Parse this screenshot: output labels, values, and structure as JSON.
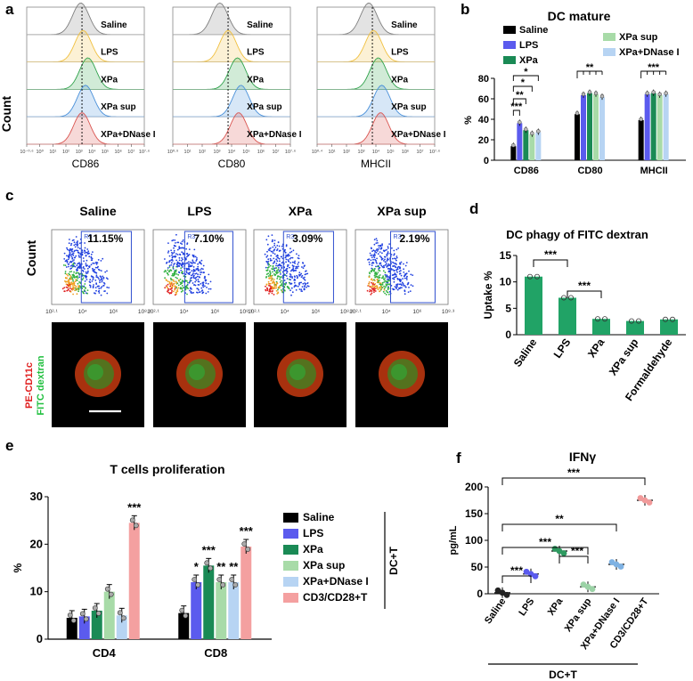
{
  "colors": {
    "saline": "#000000",
    "lps": "#5b5bee",
    "xpa": "#1a8a55",
    "xpa_sup": "#a8dba8",
    "xpa_dnase": "#b7d4f3",
    "cd3cd28": "#f4a0a0",
    "phagy_bar": "#21a366",
    "ifn_saline": "#222222",
    "ifn_lps": "#5b5bee",
    "ifn_xpa": "#2e9a60",
    "ifn_xpasup": "#9bd2a6",
    "ifn_dnase": "#7fb2e3",
    "ifn_cd3": "#f19a9a",
    "flow_saline": "#7f7f7f",
    "flow_lps": "#f0c040",
    "flow_xpa": "#2fa24b",
    "flow_xpasup": "#4a90d9",
    "flow_dnase": "#d9534f"
  },
  "panel_a": {
    "letter": "a",
    "ylabel": "Count",
    "sample_labels": [
      "Saline",
      "LPS",
      "XPa",
      "XPa sup",
      "XPa+DNase I"
    ],
    "histograms": [
      {
        "xlabel": "CD86",
        "xticks": [
          "10⁻⁰·⁶",
          "10⁰",
          "10¹",
          "10²",
          "10³",
          "10⁴",
          "10⁵",
          "10⁶",
          "10⁷",
          "10⁷·⁶"
        ]
      },
      {
        "xlabel": "CD80",
        "xticks": [
          "10⁰·⁹",
          "10¹",
          "10²",
          "10³",
          "10⁴",
          "10⁵",
          "10⁶",
          "10⁷",
          "10⁷·⁶"
        ]
      },
      {
        "xlabel": "MHCII",
        "xticks": [
          "10⁰·⁴",
          "10¹",
          "10²",
          "10³",
          "10⁴",
          "10⁵",
          "10⁶",
          "10⁷",
          "10⁷·⁶"
        ]
      }
    ]
  },
  "panel_c": {
    "letter": "c",
    "ylabel": "Count",
    "plots": [
      {
        "title": "Saline",
        "percent": "11.15%",
        "gate": "R3"
      },
      {
        "title": "LPS",
        "percent": "7.10%",
        "gate": "R3"
      },
      {
        "title": "XPa",
        "percent": "3.09%",
        "gate": "R3"
      },
      {
        "title": "XPa sup",
        "percent": "2.19%",
        "gate": "R3"
      }
    ],
    "xticks": [
      "10²·¹",
      "10⁴",
      "10⁶",
      "10⁸·³"
    ],
    "stain_red": "PE-CD11c",
    "stain_green": "FITC dextran"
  },
  "chart_data": [
    {
      "panel": "b",
      "type": "bar",
      "title": "DC mature",
      "ylabel": "%",
      "categories": [
        "CD86",
        "CD80",
        "MHCII"
      ],
      "ylim": [
        0,
        80
      ],
      "yticks": [
        0,
        20,
        40,
        60,
        80
      ],
      "series": [
        {
          "name": "Saline",
          "values": [
            14,
            46,
            40
          ]
        },
        {
          "name": "LPS",
          "values": [
            37,
            65,
            66
          ]
        },
        {
          "name": "XPa",
          "values": [
            30,
            67,
            67
          ]
        },
        {
          "name": "XPa sup",
          "values": [
            26,
            66,
            65
          ]
        },
        {
          "name": "XPa+DNase I",
          "values": [
            28,
            63,
            66
          ]
        }
      ],
      "significance": [
        "***",
        "**",
        "*",
        "*",
        "**",
        "***"
      ]
    },
    {
      "panel": "d",
      "type": "bar",
      "title": "DC phagy of FITC dextran",
      "ylabel": "Uptake %",
      "categories": [
        "Saline",
        "LPS",
        "XPa",
        "XPa sup",
        "Formaldehyde"
      ],
      "values": [
        11,
        7,
        3,
        2.6,
        2.9
      ],
      "ylim": [
        0,
        15
      ],
      "yticks": [
        0,
        5,
        10,
        15
      ],
      "significance": [
        "***",
        "***"
      ]
    },
    {
      "panel": "e",
      "type": "bar",
      "title": "T cells proliferation",
      "ylabel": "%",
      "categories": [
        "CD4",
        "CD8"
      ],
      "ylim": [
        0,
        30
      ],
      "yticks": [
        0,
        10,
        20,
        30
      ],
      "series": [
        {
          "name": "Saline",
          "values": [
            4.5,
            5.5
          ],
          "sig": [
            "",
            ""
          ]
        },
        {
          "name": "LPS",
          "values": [
            4.8,
            12
          ],
          "sig": [
            "",
            "*"
          ]
        },
        {
          "name": "XPa",
          "values": [
            6,
            15.5
          ],
          "sig": [
            "",
            "***"
          ]
        },
        {
          "name": "XPa sup",
          "values": [
            10,
            12
          ],
          "sig": [
            "",
            "**"
          ]
        },
        {
          "name": "XPa+DNase I",
          "values": [
            5,
            12
          ],
          "sig": [
            "",
            "**"
          ]
        },
        {
          "name": "CD3/CD28+T",
          "values": [
            24.5,
            19.5
          ],
          "sig": [
            "***",
            "***"
          ]
        }
      ],
      "group_label": "DC+T"
    },
    {
      "panel": "f",
      "type": "scatter",
      "title": "IFNγ",
      "ylabel": "pg/mL",
      "categories": [
        "Saline",
        "LPS",
        "XPa",
        "XPa sup",
        "XPa+DNase I",
        "CD3/CD28+T"
      ],
      "values": [
        2,
        37,
        80,
        13,
        55,
        175
      ],
      "ylim": [
        0,
        200
      ],
      "yticks": [
        0,
        50,
        100,
        150,
        200
      ],
      "significance": [
        "***",
        "***",
        "***",
        "**",
        "***"
      ],
      "group_label": "DC+T"
    }
  ]
}
